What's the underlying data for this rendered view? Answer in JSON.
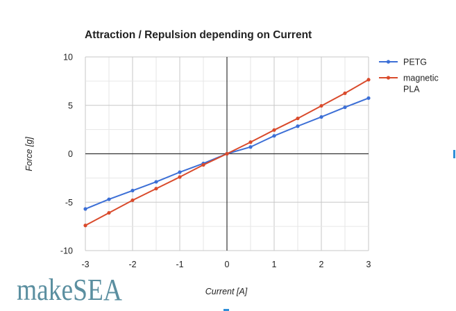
{
  "chart_data": {
    "type": "line",
    "title": "Attraction / Repulsion depending on Current",
    "xlabel": "Current [A]",
    "ylabel": "Force [g]",
    "xlim": [
      -3,
      3
    ],
    "ylim": [
      -10,
      10
    ],
    "x_ticks": [
      "-3",
      "-2",
      "-1",
      "0",
      "1",
      "2",
      "3"
    ],
    "y_ticks": [
      "10",
      "5",
      "0",
      "-5",
      "-10"
    ],
    "grid": true,
    "legend_position": "right",
    "series": [
      {
        "name": "PETG",
        "color": "#3c6fd6",
        "points": [
          [
            -3,
            -5.7
          ],
          [
            -2.5,
            -4.7
          ],
          [
            -2,
            -3.8
          ],
          [
            -1.5,
            -2.9
          ],
          [
            -1,
            -1.9
          ],
          [
            -0.5,
            -1.0
          ],
          [
            0,
            0
          ],
          [
            0.5,
            0.7
          ],
          [
            1,
            1.85
          ],
          [
            1.5,
            2.85
          ],
          [
            2,
            3.8
          ],
          [
            2.5,
            4.8
          ],
          [
            3,
            5.75
          ]
        ]
      },
      {
        "name": "magnetic\nPLA",
        "color": "#d94a2b",
        "points": [
          [
            -3,
            -7.4
          ],
          [
            -2.5,
            -6.1
          ],
          [
            -2,
            -4.8
          ],
          [
            -1.5,
            -3.6
          ],
          [
            -1,
            -2.4
          ],
          [
            -0.5,
            -1.15
          ],
          [
            0,
            0
          ],
          [
            0.5,
            1.2
          ],
          [
            1,
            2.45
          ],
          [
            1.5,
            3.65
          ],
          [
            2,
            4.95
          ],
          [
            2.5,
            6.25
          ],
          [
            3,
            7.65
          ]
        ]
      }
    ]
  },
  "logo": {
    "text": "makeSEA",
    "color": "#5b8fa0"
  }
}
